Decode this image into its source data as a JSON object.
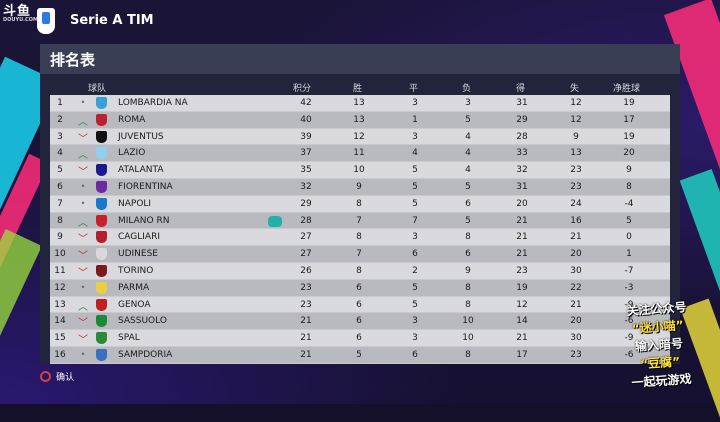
{
  "brand": {
    "logo_text": "斗鱼",
    "logo_sub": "DOUYU.COM"
  },
  "league": {
    "title": "Serie A TIM"
  },
  "panel": {
    "title": "排名表"
  },
  "columns": {
    "team": "球队",
    "pts": "积分",
    "w": "胜",
    "d": "平",
    "l": "负",
    "gf": "得",
    "ga": "失",
    "gd": "净胜球"
  },
  "trend_glyphs": {
    "up": "︿",
    "down": "﹀",
    "same": "•"
  },
  "rows": [
    {
      "pos": "1",
      "trend": "same",
      "crest": "#3aa0d8",
      "team": "LOMBARDIA NA",
      "pts": "42",
      "w": "13",
      "d": "3",
      "l": "3",
      "gf": "31",
      "ga": "12",
      "gd": "19"
    },
    {
      "pos": "2",
      "trend": "up",
      "crest": "#b8232f",
      "team": "ROMA",
      "pts": "40",
      "w": "13",
      "d": "1",
      "l": "5",
      "gf": "29",
      "ga": "12",
      "gd": "17"
    },
    {
      "pos": "3",
      "trend": "down",
      "crest": "#111111",
      "team": "JUVENTUS",
      "pts": "39",
      "w": "12",
      "d": "3",
      "l": "4",
      "gf": "28",
      "ga": "9",
      "gd": "19"
    },
    {
      "pos": "4",
      "trend": "up",
      "crest": "#8fd0f0",
      "team": "LAZIO",
      "pts": "37",
      "w": "11",
      "d": "4",
      "l": "4",
      "gf": "33",
      "ga": "13",
      "gd": "20"
    },
    {
      "pos": "5",
      "trend": "down",
      "crest": "#1a1a8a",
      "team": "ATALANTA",
      "pts": "35",
      "w": "10",
      "d": "5",
      "l": "4",
      "gf": "32",
      "ga": "23",
      "gd": "9"
    },
    {
      "pos": "6",
      "trend": "same",
      "crest": "#6a2aa0",
      "team": "FIORENTINA",
      "pts": "32",
      "w": "9",
      "d": "5",
      "l": "5",
      "gf": "31",
      "ga": "23",
      "gd": "8"
    },
    {
      "pos": "7",
      "trend": "same",
      "crest": "#1a78c8",
      "team": "NAPOLI",
      "pts": "29",
      "w": "8",
      "d": "5",
      "l": "6",
      "gf": "20",
      "ga": "24",
      "gd": "-4"
    },
    {
      "pos": "8",
      "trend": "up",
      "crest": "#c8202a",
      "team": "MILANO RN",
      "pts": "28",
      "w": "7",
      "d": "7",
      "l": "5",
      "gf": "21",
      "ga": "16",
      "gd": "5",
      "controller": true
    },
    {
      "pos": "9",
      "trend": "down",
      "crest": "#b02030",
      "team": "CAGLIARI",
      "pts": "27",
      "w": "8",
      "d": "3",
      "l": "8",
      "gf": "21",
      "ga": "21",
      "gd": "0"
    },
    {
      "pos": "10",
      "trend": "down",
      "crest": "#d8d8d8",
      "team": "UDINESE",
      "pts": "27",
      "w": "7",
      "d": "6",
      "l": "6",
      "gf": "21",
      "ga": "20",
      "gd": "1"
    },
    {
      "pos": "11",
      "trend": "down",
      "crest": "#7a1a1a",
      "team": "TORINO",
      "pts": "26",
      "w": "8",
      "d": "2",
      "l": "9",
      "gf": "23",
      "ga": "30",
      "gd": "-7"
    },
    {
      "pos": "12",
      "trend": "same",
      "crest": "#e8d040",
      "team": "PARMA",
      "pts": "23",
      "w": "6",
      "d": "5",
      "l": "8",
      "gf": "19",
      "ga": "22",
      "gd": "-3"
    },
    {
      "pos": "13",
      "trend": "up",
      "crest": "#c02020",
      "team": "GENOA",
      "pts": "23",
      "w": "6",
      "d": "5",
      "l": "8",
      "gf": "12",
      "ga": "21",
      "gd": "-9"
    },
    {
      "pos": "14",
      "trend": "down",
      "crest": "#1a8a3a",
      "team": "SASSUOLO",
      "pts": "21",
      "w": "6",
      "d": "3",
      "l": "10",
      "gf": "14",
      "ga": "20",
      "gd": "-6"
    },
    {
      "pos": "15",
      "trend": "down",
      "crest": "#2a8a3a",
      "team": "SPAL",
      "pts": "21",
      "w": "6",
      "d": "3",
      "l": "10",
      "gf": "21",
      "ga": "30",
      "gd": "-9"
    },
    {
      "pos": "16",
      "trend": "same",
      "crest": "#3a70c0",
      "team": "SAMPDORIA",
      "pts": "21",
      "w": "5",
      "d": "6",
      "l": "8",
      "gf": "17",
      "ga": "23",
      "gd": "-6"
    }
  ],
  "footer": {
    "confirm_label": "确认"
  },
  "promo": {
    "line1": "关注公众号",
    "line2": "“迷小喵”",
    "line3": "输入暗号",
    "line4": "“豆腐”",
    "line5": "一起玩游戏"
  }
}
